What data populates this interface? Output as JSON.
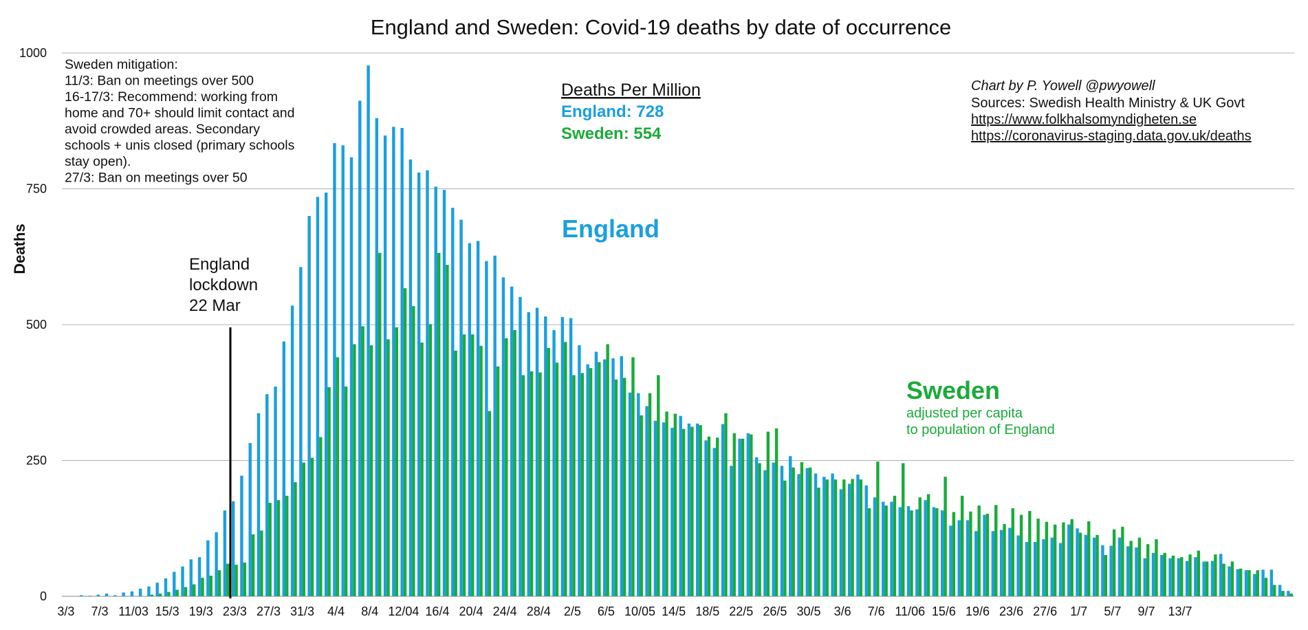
{
  "chart_data": {
    "type": "bar",
    "title": "England and Sweden: Covid-19 deaths by date of occurrence",
    "ylabel": "Deaths",
    "xlabel": "",
    "ylim": [
      0,
      1000
    ],
    "yticks": [
      0,
      250,
      500,
      750,
      1000
    ],
    "grid": true,
    "xtick_labels": [
      "3/3",
      "7/3",
      "11/03",
      "15/3",
      "19/3",
      "23/3",
      "27/3",
      "31/3",
      "4/4",
      "8/4",
      "12/04",
      "16/4",
      "20/4",
      "24/4",
      "28/4",
      "2/5",
      "6/5",
      "10/05",
      "14/5",
      "18/5",
      "22/5",
      "26/5",
      "30/5",
      "3/6",
      "7/6",
      "11/06",
      "15/6",
      "19/6",
      "23/6",
      "27/6",
      "1/7",
      "5/7",
      "9/7",
      "13/7"
    ],
    "x_start": "3/3",
    "colors": {
      "england": "#1a9fe0",
      "sweden": "#1aab3a",
      "grid": "#b0b0b0",
      "lockdown": "#000000"
    },
    "series": [
      {
        "name": "England",
        "color": "#1a9fe0",
        "values": [
          0,
          0,
          2,
          1,
          3,
          5,
          2,
          7,
          9,
          14,
          18,
          25,
          33,
          45,
          55,
          68,
          72,
          103,
          118,
          158,
          175,
          222,
          282,
          337,
          372,
          386,
          469,
          535,
          606,
          700,
          735,
          743,
          834,
          830,
          808,
          912,
          977,
          880,
          848,
          864,
          862,
          804,
          780,
          784,
          754,
          748,
          715,
          693,
          650,
          654,
          617,
          627,
          587,
          570,
          551,
          523,
          531,
          515,
          490,
          514,
          512,
          462,
          427,
          450,
          436,
          438,
          442,
          375,
          374,
          350,
          323,
          320,
          310,
          332,
          318,
          318,
          287,
          273,
          317,
          240,
          290,
          300,
          256,
          232,
          246,
          240,
          258,
          225,
          236,
          226,
          220,
          226,
          197,
          207,
          224,
          204,
          182,
          174,
          174,
          164,
          166,
          160,
          177,
          164,
          158,
          130,
          140,
          140,
          120,
          150,
          120,
          122,
          126,
          112,
          100,
          100,
          105,
          108,
          98,
          132,
          125,
          113,
          108,
          94,
          93,
          108,
          92,
          90,
          70,
          80,
          76,
          70,
          70,
          65,
          72,
          64,
          65,
          78,
          55,
          50,
          48,
          41,
          49,
          49,
          21,
          10
        ]
      },
      {
        "name": "Sweden",
        "color": "#1aab3a",
        "values": [
          0,
          0,
          0,
          0,
          0,
          0,
          0,
          0,
          0,
          0,
          3,
          5,
          8,
          12,
          17,
          22,
          34,
          38,
          48,
          60,
          58,
          62,
          114,
          121,
          172,
          177,
          185,
          210,
          246,
          255,
          293,
          385,
          440,
          386,
          464,
          497,
          462,
          632,
          473,
          495,
          567,
          534,
          467,
          501,
          632,
          610,
          452,
          482,
          482,
          461,
          341,
          423,
          475,
          490,
          407,
          414,
          412,
          457,
          430,
          468,
          407,
          411,
          420,
          431,
          464,
          399,
          402,
          440,
          333,
          374,
          407,
          340,
          336,
          308,
          312,
          315,
          294,
          292,
          337,
          300,
          290,
          298,
          245,
          303,
          309,
          213,
          237,
          247,
          237,
          200,
          215,
          215,
          215,
          216,
          215,
          162,
          248,
          167,
          185,
          245,
          158,
          182,
          188,
          162,
          220,
          155,
          185,
          156,
          167,
          152,
          168,
          133,
          162,
          150,
          157,
          143,
          137,
          132,
          136,
          142,
          117,
          138,
          113,
          76,
          123,
          128,
          102,
          108,
          96,
          105,
          80,
          75,
          72,
          77,
          84,
          64,
          77,
          60,
          64,
          51,
          48,
          48,
          34,
          21,
          10,
          5
        ]
      }
    ],
    "annotations": {
      "lockdown": [
        "England",
        "lockdown",
        "22 Mar"
      ],
      "mitigation": [
        "Sweden mitigation:",
        "11/3: Ban on meetings over 500",
        "16-17/3: Recommend: working from",
        "home and 70+ should limit contact and",
        "avoid crowded areas. Secondary",
        "schools + unis closed (primary schools",
        "stay open).",
        "27/3: Ban on meetings over 50"
      ],
      "dpm_heading": "Deaths Per Million",
      "dpm_england": "England: 728",
      "dpm_sweden": "Sweden: 554",
      "england_label": "England",
      "sweden_label": "Sweden",
      "sweden_sub": [
        "adjusted per capita",
        "to population of England"
      ],
      "credit": "Chart by P. Yowell @pwyowell",
      "sources": "Sources: Swedish Health Ministry & UK Govt",
      "links": [
        "https://www.folkhalsomyndigheten.se",
        "https://coronavirus-staging.data.gov.uk/deaths"
      ]
    }
  }
}
